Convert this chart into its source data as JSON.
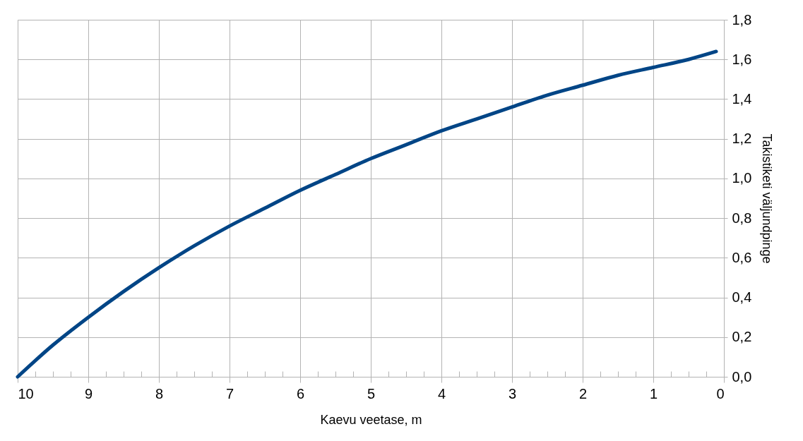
{
  "chart_data": {
    "type": "line",
    "xlabel": "Kaevu veetase, m",
    "ylabel": "Takistiketi väljundpinge",
    "x": [
      10,
      9.5,
      9,
      8.5,
      8,
      7.5,
      7,
      6.5,
      6,
      5.5,
      5,
      4.5,
      4,
      3.5,
      3,
      2.5,
      2,
      1.5,
      1,
      0.5,
      0.11
    ],
    "series": [
      {
        "color": "#004586",
        "values": [
          0,
          0.16,
          0.3,
          0.43,
          0.55,
          0.66,
          0.76,
          0.85,
          0.94,
          1.02,
          1.1,
          1.17,
          1.24,
          1.3,
          1.36,
          1.42,
          1.47,
          1.52,
          1.56,
          1.6,
          1.64
        ]
      }
    ],
    "xlim": [
      10,
      0
    ],
    "xticks": [
      10,
      {
        "value": 9.75,
        "label": null
      },
      {
        "value": 9.5,
        "label": null
      },
      {
        "value": 9.25,
        "label": null
      },
      9,
      {
        "value": 8.75,
        "label": null
      },
      {
        "value": 8.5,
        "label": null
      },
      {
        "value": 8.25,
        "label": null
      },
      8,
      {
        "value": 7.75,
        "label": null
      },
      {
        "value": 7.5,
        "label": null
      },
      {
        "value": 7.25,
        "label": null
      },
      7,
      {
        "value": 6.75,
        "label": null
      },
      {
        "value": 6.5,
        "label": null
      },
      {
        "value": 6.25,
        "label": null
      },
      6,
      {
        "value": 5.75,
        "label": null
      },
      {
        "value": 5.5,
        "label": null
      },
      {
        "value": 5.25,
        "label": null
      },
      5,
      {
        "value": 4.75,
        "label": null
      },
      {
        "value": 4.5,
        "label": null
      },
      {
        "value": 4.25,
        "label": null
      },
      4,
      {
        "value": 3.75,
        "label": null
      },
      {
        "value": 3.5,
        "label": null
      },
      {
        "value": 3.25,
        "label": null
      },
      3,
      {
        "value": 2.75,
        "label": null
      },
      {
        "value": 2.5,
        "label": null
      },
      {
        "value": 2.25,
        "label": null
      },
      2,
      {
        "value": 1.75,
        "label": null
      },
      {
        "value": 1.5,
        "label": null
      },
      {
        "value": 1.25,
        "label": null
      },
      1,
      {
        "value": 0.75,
        "label": null
      },
      {
        "value": 0.5,
        "label": null
      },
      {
        "value": 0.25,
        "label": null
      },
      0
    ],
    "ylim": [
      0,
      1.8
    ],
    "yticks": [
      {
        "value": 0,
        "label": "0,0"
      },
      {
        "value": 0.2,
        "label": "0,2"
      },
      {
        "value": 0.4,
        "label": "0,4"
      },
      {
        "value": 0.6,
        "label": "0,6"
      },
      {
        "value": 0.8,
        "label": "0,8"
      },
      {
        "value": 1.0,
        "label": "1,0"
      },
      {
        "value": 1.2,
        "label": "1,2"
      },
      {
        "value": 1.4,
        "label": "1,4"
      },
      {
        "value": 1.6,
        "label": "1,6"
      },
      {
        "value": 1.8,
        "label": "1,8"
      }
    ],
    "grid": true,
    "marker": "none",
    "line_style": "solid"
  }
}
